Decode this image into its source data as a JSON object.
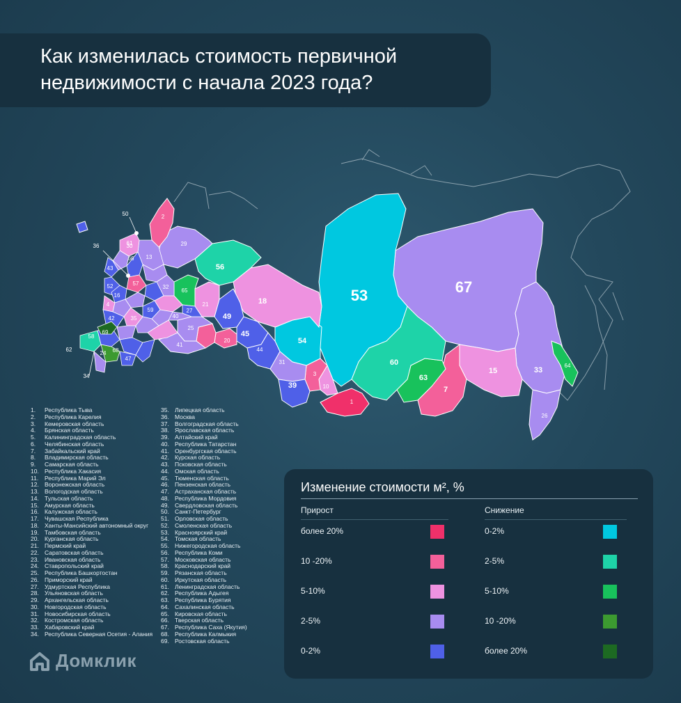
{
  "title": "Как изменилась стоимость первичной недвижимости с начала 2023 года?",
  "map": {
    "labels": [
      "53",
      "67",
      "50",
      "36",
      "62",
      "34",
      "1",
      "3",
      "7",
      "10",
      "15",
      "18",
      "20",
      "21",
      "24",
      "25",
      "26",
      "29",
      "30",
      "31",
      "33",
      "39",
      "44",
      "45",
      "49",
      "54",
      "56",
      "58",
      "60",
      "63",
      "64",
      "66",
      "68",
      "69",
      "2",
      "4",
      "13",
      "16",
      "27",
      "32",
      "35",
      "40",
      "41",
      "42",
      "43",
      "47",
      "52",
      "57",
      "59",
      "61",
      "65"
    ]
  },
  "regions_left": [
    {
      "n": "1.",
      "name": "Республика Тыва"
    },
    {
      "n": "2.",
      "name": "Республика Карелия"
    },
    {
      "n": "3.",
      "name": "Кемеровская область"
    },
    {
      "n": "4.",
      "name": "Брянская область"
    },
    {
      "n": "5.",
      "name": "Калининградская область"
    },
    {
      "n": "6.",
      "name": "Челябинская область"
    },
    {
      "n": "7.",
      "name": "Забайкальский край"
    },
    {
      "n": "8.",
      "name": "Владимирская область"
    },
    {
      "n": "9.",
      "name": "Самарская область"
    },
    {
      "n": "10.",
      "name": "Республика Хакасия"
    },
    {
      "n": "11.",
      "name": "Республика Марий Эл"
    },
    {
      "n": "12.",
      "name": "Воронежская область"
    },
    {
      "n": "13.",
      "name": "Вологодская область"
    },
    {
      "n": "14.",
      "name": "Тульская область"
    },
    {
      "n": "15.",
      "name": "Амурская область"
    },
    {
      "n": "16.",
      "name": "Калужская область"
    },
    {
      "n": "17.",
      "name": "Чувашская Республика"
    },
    {
      "n": "18.",
      "name": "Ханты-Мансийский автономный округ"
    },
    {
      "n": "19.",
      "name": "Тамбовская область"
    },
    {
      "n": "20.",
      "name": "Курганская область"
    },
    {
      "n": "21.",
      "name": "Пермский край"
    },
    {
      "n": "22.",
      "name": "Саратовская область"
    },
    {
      "n": "23.",
      "name": "Ивановская область"
    },
    {
      "n": "24.",
      "name": "Ставропольский край"
    },
    {
      "n": "25.",
      "name": "Республика Башкортостан"
    },
    {
      "n": "26.",
      "name": "Приморский край"
    },
    {
      "n": "27.",
      "name": "Удмуртская Республика"
    },
    {
      "n": "28.",
      "name": "Ульяновская область"
    },
    {
      "n": "29.",
      "name": "Архангельская область"
    },
    {
      "n": "30.",
      "name": "Новгородская область"
    },
    {
      "n": "31.",
      "name": "Новосибирская область"
    },
    {
      "n": "32.",
      "name": "Костромская область"
    },
    {
      "n": "33.",
      "name": "Хабаровский край"
    },
    {
      "n": "34.",
      "name": "Республика Северная Осетия - Алания"
    }
  ],
  "regions_right": [
    {
      "n": "35.",
      "name": "Липецкая область"
    },
    {
      "n": "36.",
      "name": "Москва"
    },
    {
      "n": "37.",
      "name": "Волгоградская область"
    },
    {
      "n": "38.",
      "name": "Ярославская область"
    },
    {
      "n": "39.",
      "name": "Алтайский край"
    },
    {
      "n": "40.",
      "name": "Республика Татарстан"
    },
    {
      "n": "41.",
      "name": "Оренбургская область"
    },
    {
      "n": "42.",
      "name": "Курская область"
    },
    {
      "n": "43.",
      "name": "Псковская область"
    },
    {
      "n": "44.",
      "name": "Омская область"
    },
    {
      "n": "45.",
      "name": "Тюменская область"
    },
    {
      "n": "46.",
      "name": "Пензенская область"
    },
    {
      "n": "47.",
      "name": "Астраханская область"
    },
    {
      "n": "48.",
      "name": "Республика Мордовия"
    },
    {
      "n": "49.",
      "name": "Свердловская область"
    },
    {
      "n": "50.",
      "name": "Санкт-Петербург"
    },
    {
      "n": "51.",
      "name": "Орловская область"
    },
    {
      "n": "52.",
      "name": "Смоленская область"
    },
    {
      "n": "53.",
      "name": "Красноярский край"
    },
    {
      "n": "54.",
      "name": "Томская область"
    },
    {
      "n": "55.",
      "name": "Нижегородская область"
    },
    {
      "n": "56.",
      "name": "Республика Коми"
    },
    {
      "n": "57.",
      "name": "Московская область"
    },
    {
      "n": "58.",
      "name": "Краснодарский край"
    },
    {
      "n": "59.",
      "name": "Рязанская область"
    },
    {
      "n": "60.",
      "name": "Иркутская область"
    },
    {
      "n": "61.",
      "name": "Ленинградская область"
    },
    {
      "n": "62.",
      "name": "Республика Адыгея"
    },
    {
      "n": "63.",
      "name": "Республика Бурятия"
    },
    {
      "n": "64.",
      "name": "Сахалинская область"
    },
    {
      "n": "65.",
      "name": "Кировская область"
    },
    {
      "n": "66.",
      "name": "Тверская область"
    },
    {
      "n": "67.",
      "name": "Республика Саха (Якутия)"
    },
    {
      "n": "68.",
      "name": "Республика Калмыкия"
    },
    {
      "n": "69.",
      "name": "Ростовская область"
    }
  ],
  "logo": {
    "text": "Домклик",
    "icon": "house-logo-icon"
  },
  "legend": {
    "title": "Изменение стоимости м², %",
    "growth": {
      "header": "Прирост",
      "items": [
        {
          "label": "более 20%",
          "color": "#f0306a"
        },
        {
          "label": "10 -20%",
          "color": "#f3609a"
        },
        {
          "label": "5-10%",
          "color": "#ee92e0"
        },
        {
          "label": "2-5%",
          "color": "#a88cf0"
        },
        {
          "label": "0-2%",
          "color": "#4f60e8"
        }
      ]
    },
    "decline": {
      "header": "Снижение",
      "items": [
        {
          "label": "0-2%",
          "color": "#00c8e0"
        },
        {
          "label": "2-5%",
          "color": "#1ed3a8"
        },
        {
          "label": "5-10%",
          "color": "#18c25c"
        },
        {
          "label": "10 -20%",
          "color": "#3c9a30"
        },
        {
          "label": "более 20%",
          "color": "#1d6a22"
        }
      ]
    }
  }
}
